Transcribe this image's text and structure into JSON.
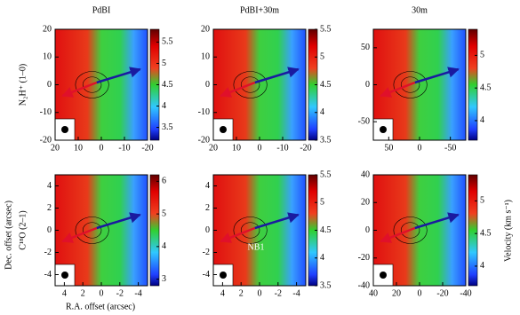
{
  "column_titles": [
    "PdBI",
    "PdBI+30m",
    "30m"
  ],
  "row_labels": [
    "N₂H⁺ (1–0)",
    "C¹⁸O (2–1)"
  ],
  "y_label": "Dec. offset (arcsec)",
  "x_label": "R.A. offset (arcsec)",
  "colorbar_label": "Velocity (km s⁻¹)",
  "annotation": "NB1",
  "chart_data": [
    {
      "type": "heatmap",
      "xlim": [
        20,
        -20
      ],
      "ylim": [
        -20,
        20
      ],
      "xticks": [
        20,
        10,
        0,
        -10,
        -20
      ],
      "yticks": [
        -20,
        -10,
        0,
        10,
        20
      ],
      "clim": [
        3.2,
        5.8
      ],
      "cticks": [
        3.5,
        4,
        4.5,
        5,
        5.5
      ]
    },
    {
      "type": "heatmap",
      "xlim": [
        20,
        -20
      ],
      "ylim": [
        -20,
        20
      ],
      "xticks": [
        20,
        10,
        0,
        -10,
        -20
      ],
      "yticks": [
        -20,
        -10,
        0,
        10,
        20
      ],
      "clim": [
        3.5,
        5.5
      ],
      "cticks": [
        3.5,
        4,
        4.5,
        5,
        5.5
      ]
    },
    {
      "type": "heatmap",
      "xlim": [
        75,
        -75
      ],
      "ylim": [
        -75,
        75
      ],
      "xticks": [
        50,
        0,
        -50
      ],
      "yticks": [
        -50,
        0,
        50
      ],
      "clim": [
        3.7,
        5.4
      ],
      "cticks": [
        4,
        4.5,
        5
      ]
    },
    {
      "type": "heatmap",
      "xlim": [
        5,
        -5
      ],
      "ylim": [
        -5,
        5
      ],
      "xticks": [
        4,
        2,
        0,
        -2,
        -4
      ],
      "yticks": [
        -4,
        -2,
        0,
        2,
        4
      ],
      "clim": [
        2.8,
        6.2
      ],
      "cticks": [
        3,
        4,
        5,
        6
      ]
    },
    {
      "type": "heatmap",
      "xlim": [
        5,
        -5
      ],
      "ylim": [
        -5,
        5
      ],
      "xticks": [
        4,
        2,
        0,
        -2,
        -4
      ],
      "yticks": [
        -4,
        -2,
        0,
        2,
        4
      ],
      "clim": [
        3.5,
        5.5
      ],
      "cticks": [
        3.5,
        4,
        4.5,
        5,
        5.5
      ]
    },
    {
      "type": "heatmap",
      "xlim": [
        40,
        -40
      ],
      "ylim": [
        -40,
        40
      ],
      "xticks": [
        40,
        20,
        0,
        -20,
        -40
      ],
      "yticks": [
        -40,
        -20,
        0,
        20,
        40
      ],
      "clim": [
        3.7,
        5.4
      ],
      "cticks": [
        4,
        4.5,
        5
      ]
    }
  ]
}
